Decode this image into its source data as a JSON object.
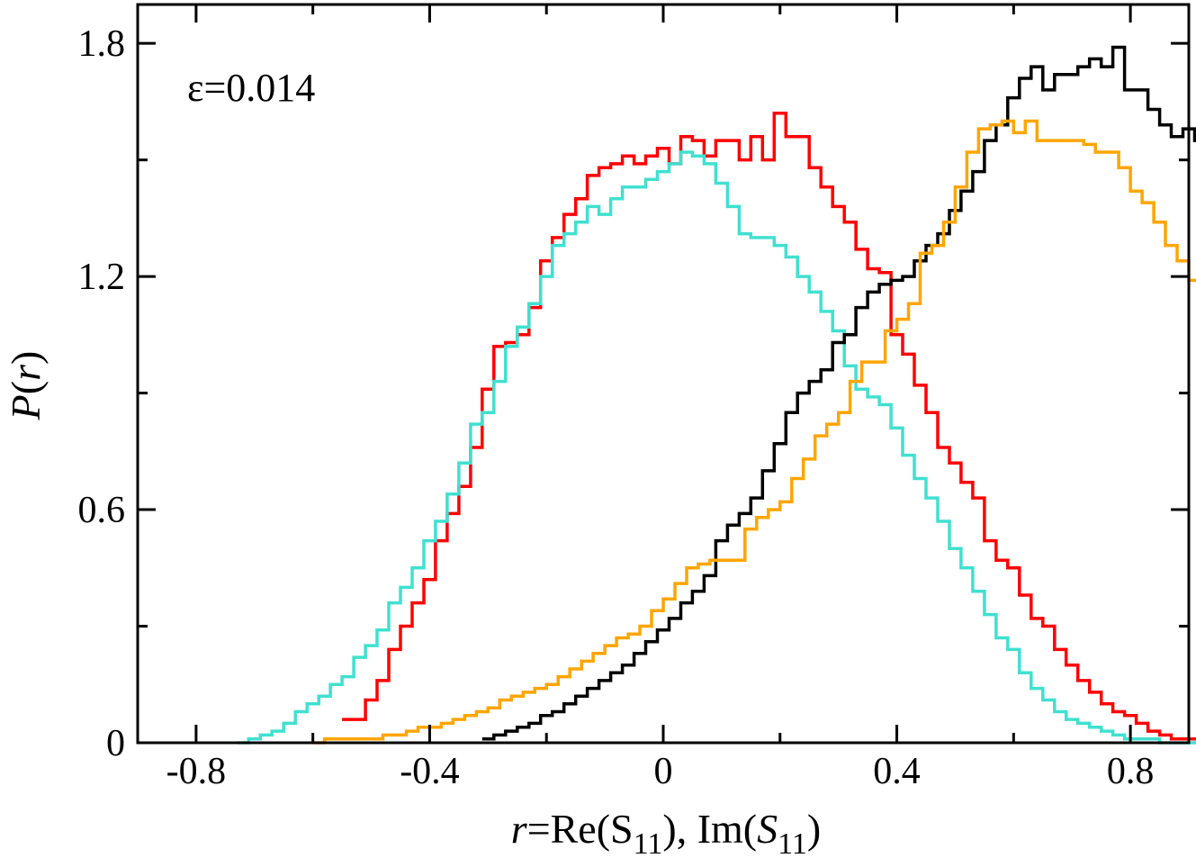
{
  "chart_data": {
    "type": "step-histogram",
    "title": "",
    "annotation": "ε=0.014",
    "xlabel": {
      "var": "r",
      "eq": "=Re(S",
      "sub1": "11",
      "mid": "), Im(",
      "var2": "S",
      "sub2": "11",
      "end": ")"
    },
    "ylabel": {
      "var": "P",
      "open": "(",
      "arg": "r",
      "close": ")"
    },
    "xlim": [
      -0.9,
      0.9
    ],
    "ylim": [
      0,
      1.9
    ],
    "xticks": [
      -0.8,
      -0.4,
      0,
      0.4,
      0.8
    ],
    "xtick_labels": [
      "-0.8",
      "-0.4",
      "0",
      "0.4",
      "0.8"
    ],
    "yticks": [
      0,
      0.6,
      1.2,
      1.8
    ],
    "ytick_labels": [
      "0",
      "0.6",
      "1.2",
      "1.8"
    ],
    "bin_width": 0.02,
    "series": [
      {
        "name": "red",
        "color": "#ff0000",
        "x_start": -0.55,
        "values": [
          0.06,
          0.06,
          0.11,
          0.16,
          0.24,
          0.3,
          0.36,
          0.42,
          0.52,
          0.59,
          0.66,
          0.76,
          0.91,
          1.02,
          1.03,
          1.05,
          1.12,
          1.24,
          1.3,
          1.36,
          1.4,
          1.46,
          1.48,
          1.49,
          1.51,
          1.49,
          1.51,
          1.53,
          1.49,
          1.56,
          1.55,
          1.51,
          1.55,
          1.55,
          1.5,
          1.56,
          1.5,
          1.62,
          1.56,
          1.56,
          1.48,
          1.43,
          1.38,
          1.34,
          1.27,
          1.22,
          1.21,
          1.05,
          1.0,
          0.92,
          0.85,
          0.76,
          0.72,
          0.67,
          0.63,
          0.52,
          0.47,
          0.45,
          0.38,
          0.32,
          0.3,
          0.24,
          0.2,
          0.16,
          0.13,
          0.1,
          0.08,
          0.07,
          0.05,
          0.03,
          0.02,
          0.01,
          0.01,
          0.01,
          0.01,
          0.0,
          0.0
        ]
      },
      {
        "name": "cyan",
        "color": "#40e0d0",
        "x_start": -0.73,
        "values": [
          0.0,
          0.01,
          0.02,
          0.03,
          0.05,
          0.08,
          0.1,
          0.12,
          0.15,
          0.17,
          0.22,
          0.25,
          0.29,
          0.36,
          0.4,
          0.45,
          0.52,
          0.57,
          0.64,
          0.72,
          0.82,
          0.85,
          0.93,
          1.02,
          1.07,
          1.13,
          1.2,
          1.28,
          1.31,
          1.34,
          1.38,
          1.36,
          1.4,
          1.43,
          1.43,
          1.45,
          1.47,
          1.49,
          1.52,
          1.51,
          1.49,
          1.44,
          1.38,
          1.31,
          1.3,
          1.3,
          1.28,
          1.25,
          1.2,
          1.16,
          1.11,
          1.06,
          0.97,
          0.91,
          0.89,
          0.87,
          0.81,
          0.74,
          0.68,
          0.63,
          0.57,
          0.5,
          0.45,
          0.39,
          0.33,
          0.27,
          0.24,
          0.18,
          0.14,
          0.11,
          0.08,
          0.06,
          0.05,
          0.04,
          0.03,
          0.02,
          0.01,
          0.01,
          0.01,
          0.0,
          0.0,
          0.0,
          0.0
        ]
      },
      {
        "name": "black",
        "color": "#000000",
        "x_start": -0.31,
        "values": [
          0.01,
          0.02,
          0.03,
          0.04,
          0.05,
          0.07,
          0.08,
          0.1,
          0.12,
          0.14,
          0.16,
          0.18,
          0.2,
          0.23,
          0.26,
          0.29,
          0.32,
          0.36,
          0.39,
          0.43,
          0.52,
          0.56,
          0.59,
          0.63,
          0.7,
          0.77,
          0.85,
          0.9,
          0.93,
          0.96,
          1.03,
          1.05,
          1.12,
          1.16,
          1.18,
          1.19,
          1.2,
          1.24,
          1.28,
          1.31,
          1.37,
          1.42,
          1.47,
          1.55,
          1.59,
          1.66,
          1.71,
          1.74,
          1.68,
          1.72,
          1.72,
          1.74,
          1.76,
          1.74,
          1.79,
          1.68,
          1.68,
          1.63,
          1.59,
          1.56,
          1.58,
          1.55,
          1.49,
          1.42,
          1.35,
          1.25,
          1.2,
          1.1,
          0.99,
          0.85,
          0.75,
          0.64,
          0.57,
          0.46,
          0.37,
          0.29,
          0.22,
          0.12,
          0.0
        ]
      },
      {
        "name": "orange",
        "color": "#ffa500",
        "x_start": -0.6,
        "values": [
          0.0,
          0.01,
          0.01,
          0.01,
          0.01,
          0.01,
          0.02,
          0.02,
          0.03,
          0.04,
          0.04,
          0.05,
          0.06,
          0.07,
          0.08,
          0.09,
          0.11,
          0.12,
          0.13,
          0.14,
          0.15,
          0.17,
          0.19,
          0.21,
          0.23,
          0.25,
          0.27,
          0.28,
          0.3,
          0.34,
          0.37,
          0.41,
          0.45,
          0.46,
          0.47,
          0.47,
          0.47,
          0.55,
          0.58,
          0.6,
          0.62,
          0.68,
          0.73,
          0.79,
          0.82,
          0.85,
          0.93,
          0.98,
          0.98,
          1.06,
          1.09,
          1.13,
          1.26,
          1.28,
          1.34,
          1.43,
          1.52,
          1.58,
          1.59,
          1.6,
          1.57,
          1.6,
          1.55,
          1.55,
          1.55,
          1.55,
          1.54,
          1.52,
          1.52,
          1.48,
          1.42,
          1.39,
          1.34,
          1.28,
          1.24,
          1.19,
          1.09,
          1.02,
          0.92,
          0.83,
          0.72,
          0.65,
          0.5,
          0.36,
          0.26,
          0.2,
          0.16,
          0.1,
          0.04,
          0.0
        ]
      }
    ]
  }
}
